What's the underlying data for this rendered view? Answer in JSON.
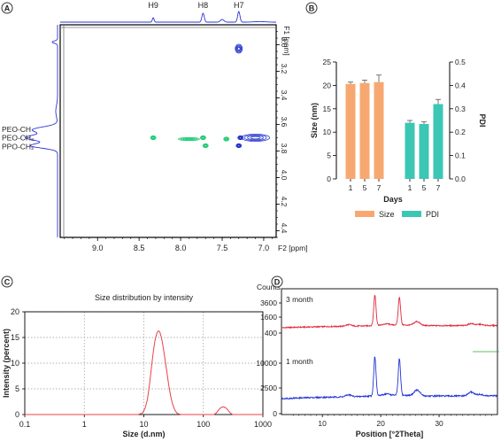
{
  "colors": {
    "nmr_trace": "#2b34d6",
    "nmr_pos": "#2233cc",
    "nmr_neg": "#22cc77",
    "size_bar": "#f7a870",
    "pdi_bar": "#3cc6b4",
    "dls_line": "#e8414b",
    "xrd_3month": "#e0283a",
    "xrd_1month": "#2233d6",
    "grid": "#999999"
  },
  "chart_data": [
    {
      "panel": "A",
      "type": "heatmap",
      "title": "",
      "xlabel": "F2 [ppm]",
      "ylabel": "F1 [ppm]",
      "xlim": [
        9.45,
        6.85
      ],
      "ylim": [
        2.85,
        4.45
      ],
      "x_ticks": [
        9.0,
        8.5,
        8.0,
        7.5,
        7.0
      ],
      "y_ticks": [
        3.0,
        3.2,
        3.4,
        3.6,
        3.8,
        4.0,
        4.2,
        4.4
      ],
      "top_peak_labels": [
        {
          "label": "H9",
          "x": 8.33
        },
        {
          "label": "H8",
          "x": 7.73
        },
        {
          "label": "H7",
          "x": 7.3
        }
      ],
      "left_peak_labels": [
        {
          "label": "PEO-CH",
          "y": 3.635
        },
        {
          "label": "PEO-CH₂",
          "y": 3.7
        },
        {
          "label": "PPO-CH₂",
          "y": 3.765
        }
      ],
      "cross_peaks": [
        {
          "x": 7.3,
          "y": 3.03,
          "sign": "pos"
        },
        {
          "x": 7.1,
          "y": 3.7,
          "sign": "pos"
        },
        {
          "x": 7.28,
          "y": 3.7,
          "sign": "pos"
        },
        {
          "x": 8.33,
          "y": 3.7,
          "sign": "neg"
        },
        {
          "x": 7.9,
          "y": 3.71,
          "sign": "neg"
        },
        {
          "x": 7.73,
          "y": 3.7,
          "sign": "neg"
        },
        {
          "x": 7.7,
          "y": 3.76,
          "sign": "neg"
        },
        {
          "x": 7.45,
          "y": 3.71,
          "sign": "neg"
        },
        {
          "x": 7.3,
          "y": 3.76,
          "sign": "pos"
        }
      ]
    },
    {
      "panel": "B",
      "type": "bar",
      "title": "",
      "xlabel": "Days",
      "ylabel": "Size (nm)",
      "y2label": "PDI",
      "ylim": [
        0,
        25
      ],
      "y2lim": [
        0,
        0.5
      ],
      "y_ticks": [
        0,
        5,
        10,
        15,
        20,
        25
      ],
      "y2_ticks": [
        0.0,
        0.1,
        0.2,
        0.3,
        0.4,
        0.5
      ],
      "categories": [
        "1",
        "5",
        "7"
      ],
      "series": [
        {
          "name": "Size",
          "axis": "left",
          "values": [
            20.3,
            20.5,
            20.7
          ],
          "errors": [
            0.4,
            0.6,
            1.5
          ]
        },
        {
          "name": "PDI",
          "axis": "right",
          "values": [
            0.24,
            0.235,
            0.32
          ],
          "errors": [
            0.01,
            0.01,
            0.02
          ]
        }
      ],
      "legend": "bottom"
    },
    {
      "panel": "C",
      "type": "line",
      "title": "Size distribution by intensity",
      "xlabel": "Size (d.nm)",
      "ylabel": "Intensity (percent)",
      "xscale": "log",
      "xlim": [
        0.1,
        1000
      ],
      "ylim": [
        0,
        20
      ],
      "x_ticks": [
        "0.1",
        "1",
        "10",
        "100",
        "1000"
      ],
      "y_ticks": [
        0,
        5,
        10,
        15,
        20
      ],
      "grid": true,
      "series": [
        {
          "x": [
            0.1,
            8,
            9.5,
            10.5,
            11.5,
            12.5,
            13.5,
            14.5,
            15.5,
            16.5,
            17.5,
            18.5,
            19.5,
            20.5,
            22,
            24,
            26,
            28,
            30,
            33,
            36,
            39,
            42,
            46,
            100,
            150,
            165,
            180,
            200,
            220,
            245,
            265,
            285,
            310,
            1000
          ],
          "y": [
            0,
            0,
            0.3,
            1.2,
            3.0,
            6.0,
            9.5,
            12.5,
            14.6,
            15.8,
            16.3,
            16.1,
            15.2,
            14.0,
            11.8,
            8.8,
            6.0,
            3.8,
            2.2,
            0.9,
            0.3,
            0.1,
            0,
            0,
            0,
            0,
            0.3,
            0.9,
            1.4,
            1.5,
            1.2,
            0.7,
            0.3,
            0,
            0
          ]
        }
      ]
    },
    {
      "panel": "D",
      "type": "line",
      "title": "",
      "xlabel": "Position [°2Theta]",
      "ylabel": "Counts",
      "xlim": [
        3,
        40
      ],
      "x_ticks": [
        10,
        20,
        30
      ],
      "series": [
        {
          "name": "3 month",
          "y_ticks": [
            "3600",
            "1600",
            "400"
          ],
          "peaks": [
            [
              14.5,
              0.04
            ],
            [
              19.0,
              0.78
            ],
            [
              21.0,
              0.03
            ],
            [
              23.2,
              0.72
            ],
            [
              26.2,
              0.1
            ],
            [
              35.5,
              0.05
            ],
            [
              37.0,
              0.03
            ]
          ]
        },
        {
          "name": "1 month",
          "y_ticks": [
            "10000",
            "2500",
            "0"
          ],
          "peaks": [
            [
              14.5,
              0.04
            ],
            [
              19.0,
              0.82
            ],
            [
              21.0,
              0.03
            ],
            [
              23.2,
              0.76
            ],
            [
              26.2,
              0.12
            ],
            [
              35.5,
              0.08
            ],
            [
              37.0,
              0.03
            ]
          ]
        }
      ]
    }
  ]
}
